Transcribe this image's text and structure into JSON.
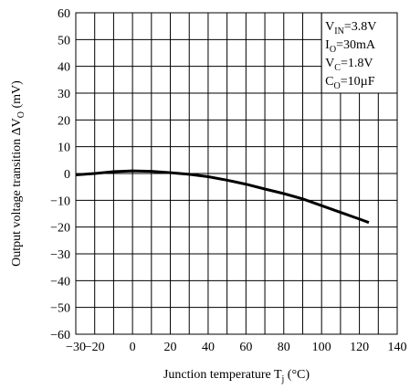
{
  "chart_data": {
    "type": "line",
    "xlabel": {
      "text": "Junction temperature T",
      "sub": "j",
      "after": " (°C)"
    },
    "ylabel": {
      "text": "Output voltage transition ΔV",
      "sub": "O",
      "after": " (mV)"
    },
    "annotations": [
      {
        "main": "V",
        "sub": "IN",
        "rest": "=3.8V"
      },
      {
        "main": "I",
        "sub": "O",
        "rest": "=30mA"
      },
      {
        "main": "V",
        "sub": "C",
        "rest": "=1.8V"
      },
      {
        "main": "C",
        "sub": "O",
        "rest": "=10µF"
      }
    ],
    "xlim": [
      -30,
      140
    ],
    "ylim": [
      -60,
      60
    ],
    "xticks": [
      {
        "value": -30,
        "label": "−30"
      },
      {
        "value": -20,
        "label": "−20"
      },
      0,
      20,
      40,
      60,
      80,
      100,
      120,
      140
    ],
    "xminor": [
      -10,
      10,
      30,
      50,
      70,
      90,
      110,
      130
    ],
    "yticks": [
      {
        "value": -60,
        "label": "−60"
      },
      {
        "value": -50,
        "label": "−50"
      },
      {
        "value": -40,
        "label": "−40"
      },
      {
        "value": -30,
        "label": "−30"
      },
      {
        "value": -20,
        "label": "−20"
      },
      {
        "value": -10,
        "label": "−10"
      },
      0,
      10,
      20,
      30,
      40,
      50,
      60
    ],
    "grid": true,
    "color": "#000000",
    "x": [
      -30,
      -20,
      -10,
      0,
      10,
      20,
      30,
      40,
      50,
      60,
      70,
      80,
      90,
      100,
      110,
      120,
      125
    ],
    "values": [
      -0.5,
      0,
      0.7,
      1,
      0.8,
      0.3,
      -0.3,
      -1.2,
      -2.5,
      -4,
      -5.8,
      -7.5,
      -9.5,
      -12,
      -14.5,
      -17,
      -18.3
    ]
  }
}
